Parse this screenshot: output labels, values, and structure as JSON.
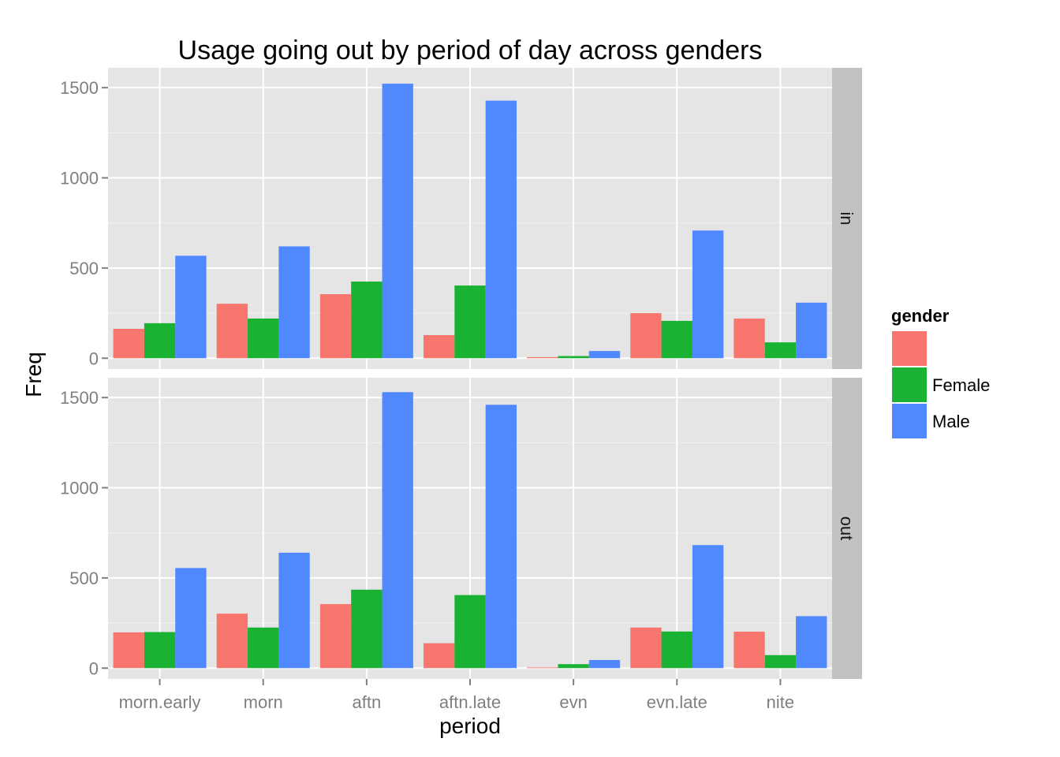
{
  "chart_data": {
    "type": "bar",
    "title": "Usage going out by period of day across genders",
    "xlabel": "period",
    "ylabel": "Freq",
    "categories": [
      "morn.early",
      "morn",
      "aftn",
      "aftn.late",
      "evn",
      "evn.late",
      "nite"
    ],
    "ylim": [
      -60,
      1610
    ],
    "yticks": [
      0,
      500,
      1000,
      1500
    ],
    "grid": true,
    "legend": {
      "title": "gender",
      "placement": "right",
      "entries": [
        {
          "label": "",
          "color": "#f8766d"
        },
        {
          "label": "Female",
          "color": "#1ab232"
        },
        {
          "label": "Male",
          "color": "#4f88ff"
        }
      ]
    },
    "facets": [
      {
        "label": "in",
        "series": [
          {
            "name": "",
            "color": "#f8766d",
            "values": [
              163,
              302,
              355,
              128,
              6,
              250,
              220
            ]
          },
          {
            "name": "Female",
            "color": "#1ab232",
            "values": [
              194,
              220,
              425,
              403,
              12,
              207,
              88
            ]
          },
          {
            "name": "Male",
            "color": "#4f88ff",
            "values": [
              568,
              620,
              1522,
              1428,
              40,
              708,
              308
            ]
          }
        ]
      },
      {
        "label": "out",
        "series": [
          {
            "name": "",
            "color": "#f8766d",
            "values": [
              198,
              302,
              355,
              138,
              4,
              225,
              202
            ]
          },
          {
            "name": "Female",
            "color": "#1ab232",
            "values": [
              200,
              225,
              435,
              405,
              22,
              203,
              72
            ]
          },
          {
            "name": "Male",
            "color": "#4f88ff",
            "values": [
              555,
              640,
              1530,
              1460,
              45,
              682,
              288
            ]
          }
        ]
      }
    ]
  }
}
